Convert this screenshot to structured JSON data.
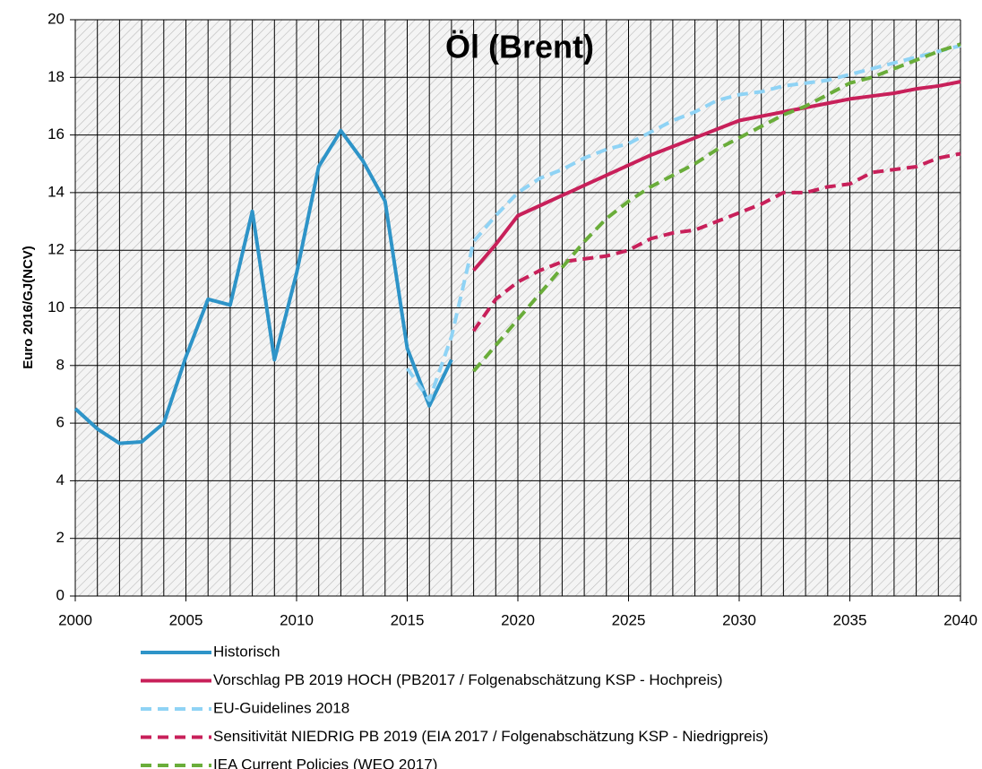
{
  "chart_data": {
    "type": "line",
    "title": "Öl (Brent)",
    "y_label": "Euro 2016/GJ(NCV)",
    "x": [
      2000,
      2001,
      2002,
      2003,
      2004,
      2005,
      2006,
      2007,
      2008,
      2009,
      2010,
      2011,
      2012,
      2013,
      2014,
      2015,
      2016,
      2017,
      2018,
      2019,
      2020,
      2021,
      2022,
      2023,
      2024,
      2025,
      2026,
      2027,
      2028,
      2029,
      2030,
      2031,
      2032,
      2033,
      2034,
      2035,
      2036,
      2037,
      2038,
      2039,
      2040
    ],
    "xlim": [
      2000,
      2040
    ],
    "xticks": [
      2000,
      2005,
      2010,
      2015,
      2020,
      2025,
      2030,
      2035,
      2040
    ],
    "ylim": [
      0,
      20
    ],
    "yticks": [
      0,
      2,
      4,
      6,
      8,
      10,
      12,
      14,
      16,
      18,
      20
    ],
    "grid": true,
    "series": [
      {
        "name": "Historisch",
        "color": "#2e94c8",
        "dash": false,
        "values": [
          6.5,
          5.8,
          5.3,
          5.35,
          6.0,
          8.3,
          10.3,
          10.1,
          13.35,
          8.2,
          11.2,
          14.9,
          16.15,
          15.1,
          13.7,
          8.6,
          6.6,
          8.2,
          null,
          null,
          null,
          null,
          null,
          null,
          null,
          null,
          null,
          null,
          null,
          null,
          null,
          null,
          null,
          null,
          null,
          null,
          null,
          null,
          null,
          null,
          null
        ]
      },
      {
        "name": "Vorschlag PB 2019 HOCH (PB2017 / Folgenabschätzung KSP - Hochpreis)",
        "color": "#c8205a",
        "dash": false,
        "values": [
          null,
          null,
          null,
          null,
          null,
          null,
          null,
          null,
          null,
          null,
          null,
          null,
          null,
          null,
          null,
          null,
          null,
          null,
          11.3,
          12.2,
          13.2,
          13.55,
          13.9,
          14.25,
          14.6,
          14.95,
          15.3,
          15.6,
          15.9,
          16.2,
          16.5,
          16.65,
          16.8,
          16.95,
          17.1,
          17.25,
          17.35,
          17.45,
          17.6,
          17.7,
          17.85
        ]
      },
      {
        "name": "EU-Guidelines 2018",
        "color": "#8fd3f5",
        "dash": true,
        "values": [
          null,
          null,
          null,
          null,
          null,
          null,
          null,
          null,
          null,
          null,
          null,
          null,
          null,
          null,
          null,
          7.9,
          6.8,
          9.0,
          12.3,
          13.2,
          14.0,
          14.5,
          14.8,
          15.2,
          15.5,
          15.7,
          16.1,
          16.5,
          16.8,
          17.2,
          17.4,
          17.5,
          17.7,
          17.8,
          17.9,
          18.1,
          18.3,
          18.5,
          18.7,
          18.9,
          19.1
        ]
      },
      {
        "name": "Sensitivität NIEDRIG PB 2019  (EIA 2017 / Folgenabschätzung KSP - Niedrigpreis)",
        "color": "#c8205a",
        "dash": true,
        "values": [
          null,
          null,
          null,
          null,
          null,
          null,
          null,
          null,
          null,
          null,
          null,
          null,
          null,
          null,
          null,
          null,
          null,
          null,
          9.2,
          10.3,
          10.9,
          11.3,
          11.6,
          11.7,
          11.8,
          12.0,
          12.4,
          12.6,
          12.7,
          13.0,
          13.3,
          13.6,
          14.0,
          14.0,
          14.2,
          14.3,
          14.7,
          14.8,
          14.9,
          15.2,
          15.35
        ]
      },
      {
        "name": "IEA Current Policies (WEO 2017)",
        "color": "#6aad3a",
        "dash": true,
        "values": [
          null,
          null,
          null,
          null,
          null,
          null,
          null,
          null,
          null,
          null,
          null,
          null,
          null,
          null,
          null,
          null,
          null,
          null,
          7.8,
          8.7,
          9.6,
          10.5,
          11.4,
          12.3,
          13.1,
          13.7,
          14.2,
          14.6,
          15.0,
          15.5,
          15.9,
          16.3,
          16.7,
          17.0,
          17.4,
          17.8,
          18.0,
          18.3,
          18.6,
          18.9,
          19.15
        ]
      }
    ]
  }
}
